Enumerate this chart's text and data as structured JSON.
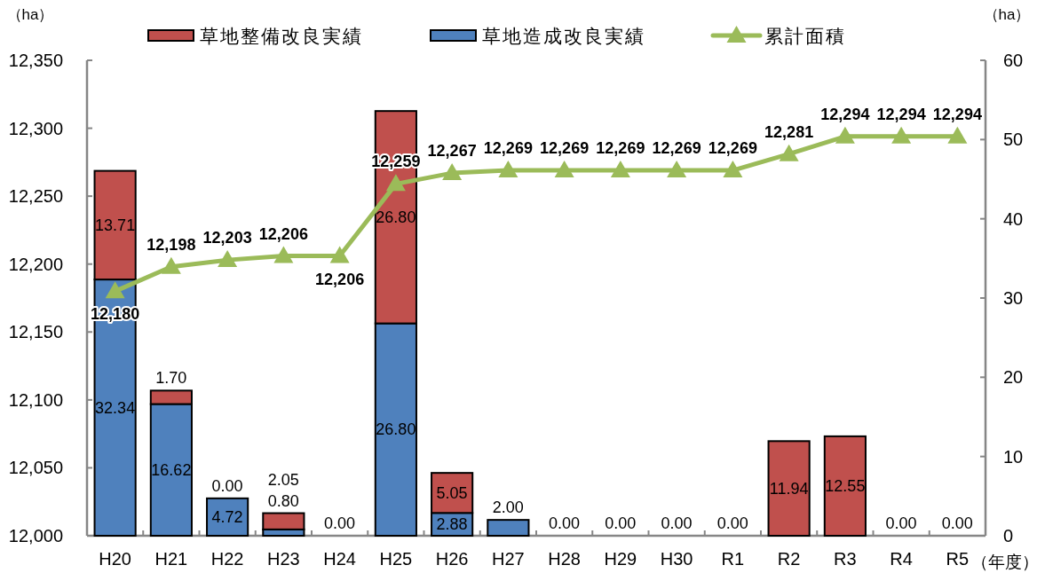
{
  "chart_data": {
    "type": "bar",
    "stacked": true,
    "legend": "top",
    "categories": [
      "H20",
      "H21",
      "H22",
      "H23",
      "H24",
      "H25",
      "H26",
      "H27",
      "H28",
      "H29",
      "H30",
      "R1",
      "R2",
      "R3",
      "R4",
      "R5"
    ],
    "xlabel": "（年度）",
    "ylabel": "（ha）",
    "y2label": "（ha）",
    "ylim": [
      12000,
      12350
    ],
    "yticks": [
      {
        "value": 12000,
        "label": "12,000"
      },
      {
        "value": 12050,
        "label": "12,050"
      },
      {
        "value": 12100,
        "label": "12,100"
      },
      {
        "value": 12150,
        "label": "12,150"
      },
      {
        "value": 12200,
        "label": "12,200"
      },
      {
        "value": 12250,
        "label": "12,250"
      },
      {
        "value": 12300,
        "label": "12,300"
      },
      {
        "value": 12350,
        "label": "12,350"
      }
    ],
    "y2lim": [
      0,
      60
    ],
    "y2ticks": [
      0,
      10,
      20,
      30,
      40,
      50,
      60
    ],
    "series": [
      {
        "name": "草地造成改良実績",
        "axis": "y2",
        "color": "#4f81bd",
        "values": [
          32.34,
          16.62,
          4.72,
          0.8,
          0,
          26.8,
          2.88,
          2.0,
          0,
          0,
          0,
          0,
          0,
          0,
          0,
          0
        ],
        "value_labels": [
          "32.34",
          "16.62",
          "4.72",
          "0.80",
          null,
          "26.80",
          "2.88",
          "2.00",
          null,
          null,
          null,
          null,
          null,
          null,
          null,
          null
        ]
      },
      {
        "name": "草地整備改良実績",
        "axis": "y2",
        "color": "#c0504d",
        "values": [
          13.71,
          1.7,
          0,
          2.05,
          0,
          26.8,
          5.05,
          0,
          0,
          0,
          0,
          0,
          11.94,
          12.55,
          0,
          0
        ],
        "value_labels": [
          "13.71",
          "1.70",
          "0.00",
          "2.05",
          "0.00",
          "26.80",
          "5.05",
          null,
          "0.00",
          "0.00",
          "0.00",
          "0.00",
          "11.94",
          "12.55",
          "0.00",
          "0.00"
        ]
      },
      {
        "name": "累計面積",
        "type": "line",
        "marker": "triangle",
        "color": "#9bbb59",
        "values": [
          12180,
          12198,
          12203,
          12206,
          12206,
          12259,
          12267,
          12269,
          12269,
          12269,
          12269,
          12269,
          12281,
          12294,
          12294,
          12294
        ],
        "value_labels": [
          "12,180",
          "12,198",
          "12,203",
          "12,206",
          "12,206",
          "12,259",
          "12,267",
          "12,269",
          "12,269",
          "12,269",
          "12,269",
          "12,269",
          "12,281",
          "12,294",
          "12,294",
          "12,294"
        ]
      }
    ]
  }
}
